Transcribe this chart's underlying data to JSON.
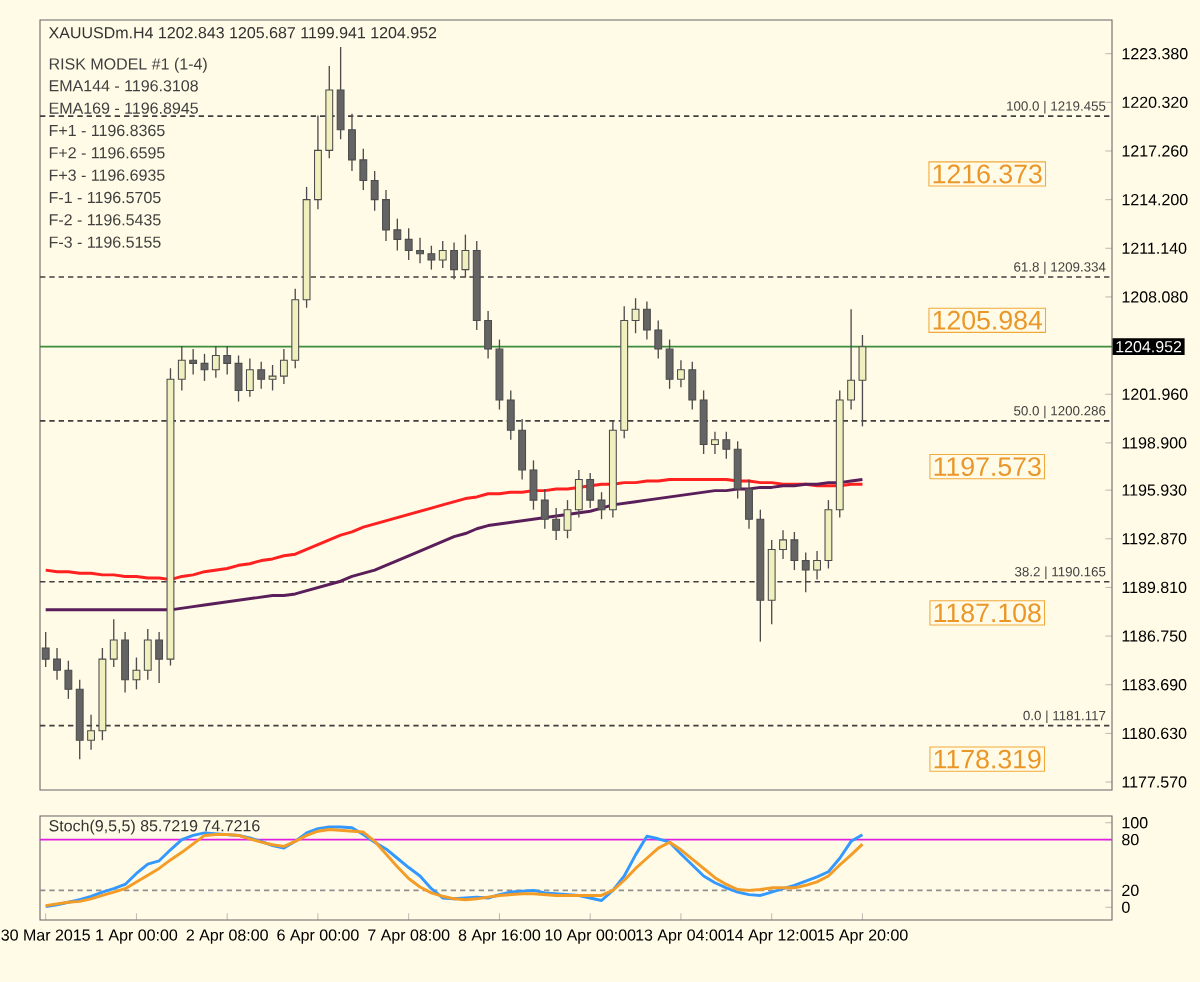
{
  "chart_data": [
    {
      "type": "candlestick",
      "title": "XAUUSDm.H4 1202.843 1205.687 1199.941 1204.952",
      "categories": [
        null,
        null,
        null,
        null,
        null,
        null,
        null,
        null,
        null,
        null,
        null,
        null,
        null,
        null,
        null,
        null,
        null,
        null,
        null,
        null,
        null,
        null,
        null,
        null,
        null,
        null,
        null,
        null,
        null,
        null,
        null,
        null,
        null,
        null,
        null,
        null,
        null,
        null,
        null,
        null,
        null,
        null,
        null,
        null,
        null,
        null,
        null,
        null,
        null,
        null,
        null,
        null,
        null,
        null,
        null,
        null,
        null,
        null,
        null,
        null,
        null,
        null,
        null,
        null,
        null,
        null,
        null,
        null,
        null,
        null,
        null,
        null,
        null
      ],
      "ohlc": [
        [
          1186.0,
          1187.0,
          1184.8,
          1185.3
        ],
        [
          1185.3,
          1186.0,
          1184.0,
          1184.6
        ],
        [
          1184.6,
          1185.2,
          1182.8,
          1183.4
        ],
        [
          1183.4,
          1184.0,
          1179.0,
          1180.2
        ],
        [
          1180.2,
          1181.8,
          1179.6,
          1180.8
        ],
        [
          1180.8,
          1186.0,
          1180.2,
          1185.3
        ],
        [
          1185.3,
          1187.8,
          1184.8,
          1186.5
        ],
        [
          1186.5,
          1187.0,
          1183.2,
          1184.0
        ],
        [
          1184.0,
          1185.4,
          1183.4,
          1184.6
        ],
        [
          1184.6,
          1187.2,
          1184.0,
          1186.5
        ],
        [
          1186.5,
          1187.0,
          1183.8,
          1185.3
        ],
        [
          1185.3,
          1203.6,
          1184.9,
          1202.9
        ],
        [
          1202.9,
          1205.0,
          1202.2,
          1204.1
        ],
        [
          1204.1,
          1204.8,
          1203.2,
          1203.9
        ],
        [
          1203.9,
          1204.5,
          1202.8,
          1203.5
        ],
        [
          1203.5,
          1205.0,
          1203.0,
          1204.4
        ],
        [
          1204.4,
          1205.0,
          1203.2,
          1203.9
        ],
        [
          1203.9,
          1204.4,
          1201.5,
          1202.2
        ],
        [
          1202.2,
          1204.2,
          1201.8,
          1203.5
        ],
        [
          1203.5,
          1204.0,
          1202.3,
          1202.9
        ],
        [
          1202.9,
          1203.8,
          1202.2,
          1203.1
        ],
        [
          1203.1,
          1204.8,
          1202.6,
          1204.1
        ],
        [
          1204.1,
          1208.6,
          1203.6,
          1207.9
        ],
        [
          1207.9,
          1215.0,
          1207.4,
          1214.2
        ],
        [
          1214.2,
          1219.5,
          1213.6,
          1217.3
        ],
        [
          1217.3,
          1222.6,
          1216.8,
          1221.1
        ],
        [
          1221.1,
          1223.8,
          1218.0,
          1218.6
        ],
        [
          1218.6,
          1219.6,
          1216.0,
          1216.7
        ],
        [
          1216.7,
          1217.4,
          1214.8,
          1215.4
        ],
        [
          1215.4,
          1216.0,
          1213.5,
          1214.2
        ],
        [
          1214.2,
          1214.8,
          1211.6,
          1212.3
        ],
        [
          1212.3,
          1213.0,
          1211.0,
          1211.7
        ],
        [
          1211.7,
          1212.4,
          1210.4,
          1211.0
        ],
        [
          1211.0,
          1211.8,
          1210.2,
          1210.8
        ],
        [
          1210.8,
          1211.3,
          1209.8,
          1210.4
        ],
        [
          1210.4,
          1211.6,
          1209.9,
          1211.0
        ],
        [
          1211.0,
          1211.5,
          1209.2,
          1209.8
        ],
        [
          1209.8,
          1212.0,
          1209.3,
          1211.0
        ],
        [
          1211.0,
          1211.6,
          1206.0,
          1206.6
        ],
        [
          1206.6,
          1207.2,
          1204.2,
          1204.8
        ],
        [
          1204.8,
          1205.4,
          1201.0,
          1201.6
        ],
        [
          1201.6,
          1202.2,
          1199.1,
          1199.7
        ],
        [
          1199.7,
          1200.4,
          1196.6,
          1197.2
        ],
        [
          1197.2,
          1197.8,
          1194.7,
          1195.3
        ],
        [
          1195.3,
          1196.0,
          1193.5,
          1194.1
        ],
        [
          1194.1,
          1194.8,
          1192.8,
          1193.4
        ],
        [
          1193.4,
          1195.3,
          1192.9,
          1194.7
        ],
        [
          1194.7,
          1197.2,
          1194.2,
          1196.6
        ],
        [
          1196.6,
          1197.0,
          1194.8,
          1195.3
        ],
        [
          1195.3,
          1195.8,
          1194.1,
          1194.7
        ],
        [
          1194.7,
          1200.3,
          1194.2,
          1199.7
        ],
        [
          1199.7,
          1207.5,
          1199.2,
          1206.6
        ],
        [
          1206.6,
          1208.0,
          1205.8,
          1207.3
        ],
        [
          1207.3,
          1207.8,
          1205.4,
          1206.0
        ],
        [
          1206.0,
          1206.6,
          1204.2,
          1204.8
        ],
        [
          1204.8,
          1205.4,
          1202.3,
          1202.9
        ],
        [
          1202.9,
          1204.1,
          1202.4,
          1203.5
        ],
        [
          1203.5,
          1204.0,
          1201.0,
          1201.6
        ],
        [
          1201.6,
          1202.2,
          1198.2,
          1198.8
        ],
        [
          1198.8,
          1199.6,
          1198.2,
          1199.1
        ],
        [
          1199.1,
          1199.6,
          1197.9,
          1198.5
        ],
        [
          1198.5,
          1199.0,
          1195.4,
          1196.0
        ],
        [
          1196.0,
          1196.6,
          1193.5,
          1194.1
        ],
        [
          1194.1,
          1194.7,
          1186.4,
          1189.0
        ],
        [
          1189.0,
          1192.8,
          1187.5,
          1192.2
        ],
        [
          1192.2,
          1193.4,
          1191.6,
          1192.8
        ],
        [
          1192.8,
          1193.3,
          1190.9,
          1191.5
        ],
        [
          1191.5,
          1192.0,
          1189.5,
          1190.9
        ],
        [
          1190.9,
          1192.1,
          1190.3,
          1191.5
        ],
        [
          1191.5,
          1195.3,
          1191.0,
          1194.7
        ],
        [
          1194.7,
          1202.2,
          1194.2,
          1201.6
        ],
        [
          1201.6,
          1207.3,
          1201.0,
          1202.843
        ],
        [
          1202.843,
          1205.687,
          1199.941,
          1204.952
        ]
      ],
      "series": [
        {
          "type": "line",
          "color": "#ff2020",
          "values": [
            1190.9,
            1190.8,
            1190.8,
            1190.7,
            1190.7,
            1190.6,
            1190.6,
            1190.5,
            1190.5,
            1190.4,
            1190.4,
            1190.3,
            1190.5,
            1190.6,
            1190.8,
            1190.9,
            1191.0,
            1191.2,
            1191.3,
            1191.5,
            1191.6,
            1191.8,
            1191.9,
            1192.2,
            1192.5,
            1192.8,
            1193.1,
            1193.3,
            1193.6,
            1193.8,
            1194.0,
            1194.2,
            1194.4,
            1194.6,
            1194.8,
            1195.0,
            1195.2,
            1195.4,
            1195.5,
            1195.7,
            1195.7,
            1195.8,
            1195.8,
            1195.9,
            1195.9,
            1196.0,
            1196.0,
            1196.1,
            1196.2,
            1196.3,
            1196.3,
            1196.4,
            1196.4,
            1196.5,
            1196.5,
            1196.6,
            1196.6,
            1196.6,
            1196.6,
            1196.6,
            1196.6,
            1196.5,
            1196.5,
            1196.4,
            1196.4,
            1196.3,
            1196.3,
            1196.3,
            1196.2,
            1196.2,
            1196.2,
            1196.3,
            1196.3
          ]
        },
        {
          "type": "line",
          "color": "#5a1f5a",
          "values": [
            1188.4,
            1188.4,
            1188.4,
            1188.4,
            1188.4,
            1188.4,
            1188.4,
            1188.4,
            1188.4,
            1188.4,
            1188.4,
            1188.4,
            1188.5,
            1188.6,
            1188.7,
            1188.8,
            1188.9,
            1189.0,
            1189.1,
            1189.2,
            1189.3,
            1189.3,
            1189.4,
            1189.6,
            1189.8,
            1190.0,
            1190.2,
            1190.5,
            1190.7,
            1190.9,
            1191.2,
            1191.5,
            1191.8,
            1192.1,
            1192.4,
            1192.7,
            1193.0,
            1193.2,
            1193.5,
            1193.7,
            1193.8,
            1193.9,
            1194.0,
            1194.1,
            1194.2,
            1194.3,
            1194.4,
            1194.5,
            1194.6,
            1194.8,
            1195.0,
            1195.1,
            1195.2,
            1195.3,
            1195.4,
            1195.5,
            1195.6,
            1195.7,
            1195.8,
            1195.9,
            1195.9,
            1196.0,
            1196.0,
            1196.1,
            1196.1,
            1196.2,
            1196.2,
            1196.3,
            1196.3,
            1196.4,
            1196.4,
            1196.5,
            1196.6
          ]
        }
      ],
      "ylim": [
        1177.07,
        1225.5
      ],
      "yticks": [
        {
          "value": 1177.57,
          "label": "1177.570"
        },
        {
          "value": 1180.63,
          "label": "1180.630"
        },
        {
          "value": 1183.69,
          "label": "1183.690"
        },
        {
          "value": 1186.75,
          "label": "1186.750"
        },
        {
          "value": 1189.81,
          "label": "1189.810"
        },
        {
          "value": 1192.87,
          "label": "1192.870"
        },
        {
          "value": 1195.93,
          "label": "1195.930"
        },
        {
          "value": 1198.9,
          "label": "1198.900"
        },
        {
          "value": 1201.96,
          "label": "1201.960"
        },
        {
          "value": 1208.08,
          "label": "1208.080"
        },
        {
          "value": 1211.14,
          "label": "1211.140"
        },
        {
          "value": 1214.2,
          "label": "1214.200"
        },
        {
          "value": 1217.26,
          "label": "1217.260"
        },
        {
          "value": 1220.32,
          "label": "1220.320"
        },
        {
          "value": 1223.38,
          "label": "1223.380"
        }
      ],
      "ref_lines": [
        {
          "axis": "y",
          "value": 1219.455,
          "label": "100.0 | 1219.455",
          "color": "#404040",
          "line_style": "dashed"
        },
        {
          "axis": "y",
          "value": 1209.334,
          "label": "61.8 | 1209.334",
          "color": "#404040",
          "line_style": "dashed"
        },
        {
          "axis": "y",
          "value": 1200.286,
          "label": "50.0 | 1200.286",
          "color": "#404040",
          "line_style": "dashed"
        },
        {
          "axis": "y",
          "value": 1190.165,
          "label": "38.2 | 1190.165",
          "color": "#404040",
          "line_style": "dashed"
        },
        {
          "axis": "y",
          "value": 1181.117,
          "label": "0.0 | 1181.117",
          "color": "#404040",
          "line_style": "dashed"
        },
        {
          "axis": "y",
          "value": 1204.952,
          "label": "1204.952",
          "color": "#3c8c3c",
          "line_style": "solid"
        }
      ],
      "annotations": [
        "RISK MODEL #1 (1-4)",
        "EMA144 - 1196.3108",
        "EMA169 - 1196.8945",
        "F+1 - 1196.8365",
        "F+2 - 1196.6595",
        "F+3 - 1196.6935",
        "F-1 - 1196.5705",
        "F-2 - 1196.5435",
        "F-3 - 1196.5155",
        "1216.373",
        "1205.984",
        "1197.573",
        "1187.108",
        "1178.319"
      ],
      "tick_labels": "y"
    },
    {
      "type": "line",
      "title": "Stoch(9,5,5) 85.7219 74.7216",
      "categories": [
        "30 Mar 2015",
        null,
        null,
        null,
        null,
        null,
        null,
        null,
        "1 Apr 00:00",
        null,
        null,
        null,
        null,
        null,
        null,
        null,
        "2 Apr 08:00",
        null,
        null,
        null,
        null,
        null,
        null,
        null,
        "6 Apr 00:00",
        null,
        null,
        null,
        null,
        null,
        null,
        null,
        "7 Apr 08:00",
        null,
        null,
        null,
        null,
        null,
        null,
        null,
        "8 Apr 16:00",
        null,
        null,
        null,
        null,
        null,
        null,
        null,
        "10 Apr 00:00",
        null,
        null,
        null,
        null,
        null,
        null,
        null,
        "13 Apr 04:00",
        null,
        null,
        null,
        null,
        null,
        null,
        null,
        "14 Apr 12:00",
        null,
        null,
        null,
        null,
        null,
        null,
        null,
        "15 Apr 20:00"
      ],
      "series": [
        {
          "color": "#3399ff",
          "values": [
            1,
            3,
            6,
            9,
            13,
            18,
            22,
            27,
            40,
            51,
            55,
            68,
            80,
            85,
            88,
            87,
            86,
            85,
            82,
            78,
            73,
            70,
            78,
            88,
            93,
            95,
            95,
            94,
            86,
            77,
            69,
            58,
            47,
            37,
            22,
            11,
            10,
            11,
            12,
            11,
            15,
            18,
            19,
            20,
            17,
            16,
            15,
            14,
            11,
            8,
            20,
            37,
            62,
            84,
            81,
            77,
            63,
            50,
            37,
            29,
            23,
            18,
            15,
            14,
            18,
            22,
            26,
            31,
            36,
            42,
            58,
            78,
            85.7219
          ]
        },
        {
          "color": "#f39c28",
          "values": [
            2,
            4,
            6,
            7,
            10,
            14,
            18,
            22,
            30,
            38,
            46,
            56,
            65,
            75,
            85,
            86,
            86,
            85,
            81,
            77,
            74,
            72,
            78,
            85,
            90,
            92,
            91,
            90,
            89,
            78,
            63,
            48,
            34,
            24,
            17,
            13,
            10,
            9,
            10,
            12,
            14,
            15,
            16,
            16,
            15,
            14,
            14,
            14,
            14,
            14,
            20,
            32,
            46,
            58,
            70,
            77,
            68,
            57,
            46,
            35,
            27,
            21,
            20,
            21,
            23,
            23,
            23,
            26,
            30,
            37,
            50,
            62,
            74.7216
          ]
        }
      ],
      "ylim": [
        -15,
        108
      ],
      "yticks": [
        0,
        20,
        80,
        100
      ],
      "ref_lines": [
        {
          "axis": "y",
          "value": 80,
          "color": "#e020e0",
          "line_style": "solid"
        },
        {
          "axis": "y",
          "value": 20,
          "color": "#909090",
          "line_style": "dashed"
        }
      ]
    }
  ]
}
